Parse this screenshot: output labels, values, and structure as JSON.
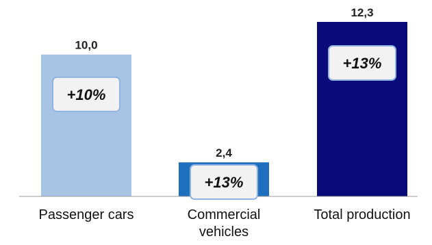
{
  "chart_data": {
    "type": "bar",
    "categories": [
      "Passenger cars",
      "Commercial vehicles",
      "Total production"
    ],
    "category_lines": [
      [
        "Passenger cars"
      ],
      [
        "Commercial",
        "vehicles"
      ],
      [
        "Total production"
      ]
    ],
    "values": [
      10.0,
      2.4,
      12.3
    ],
    "value_labels": [
      "10,0",
      "2,4",
      "12,3"
    ],
    "growth_labels": [
      "+10%",
      "+13%",
      "+13%"
    ],
    "colors": [
      "#a8c4e4",
      "#1e6fbd",
      "#0a0a7a"
    ],
    "title": "",
    "xlabel": "",
    "ylabel": "",
    "ylim": [
      0,
      12.3
    ],
    "grid": false,
    "legend": "none"
  }
}
